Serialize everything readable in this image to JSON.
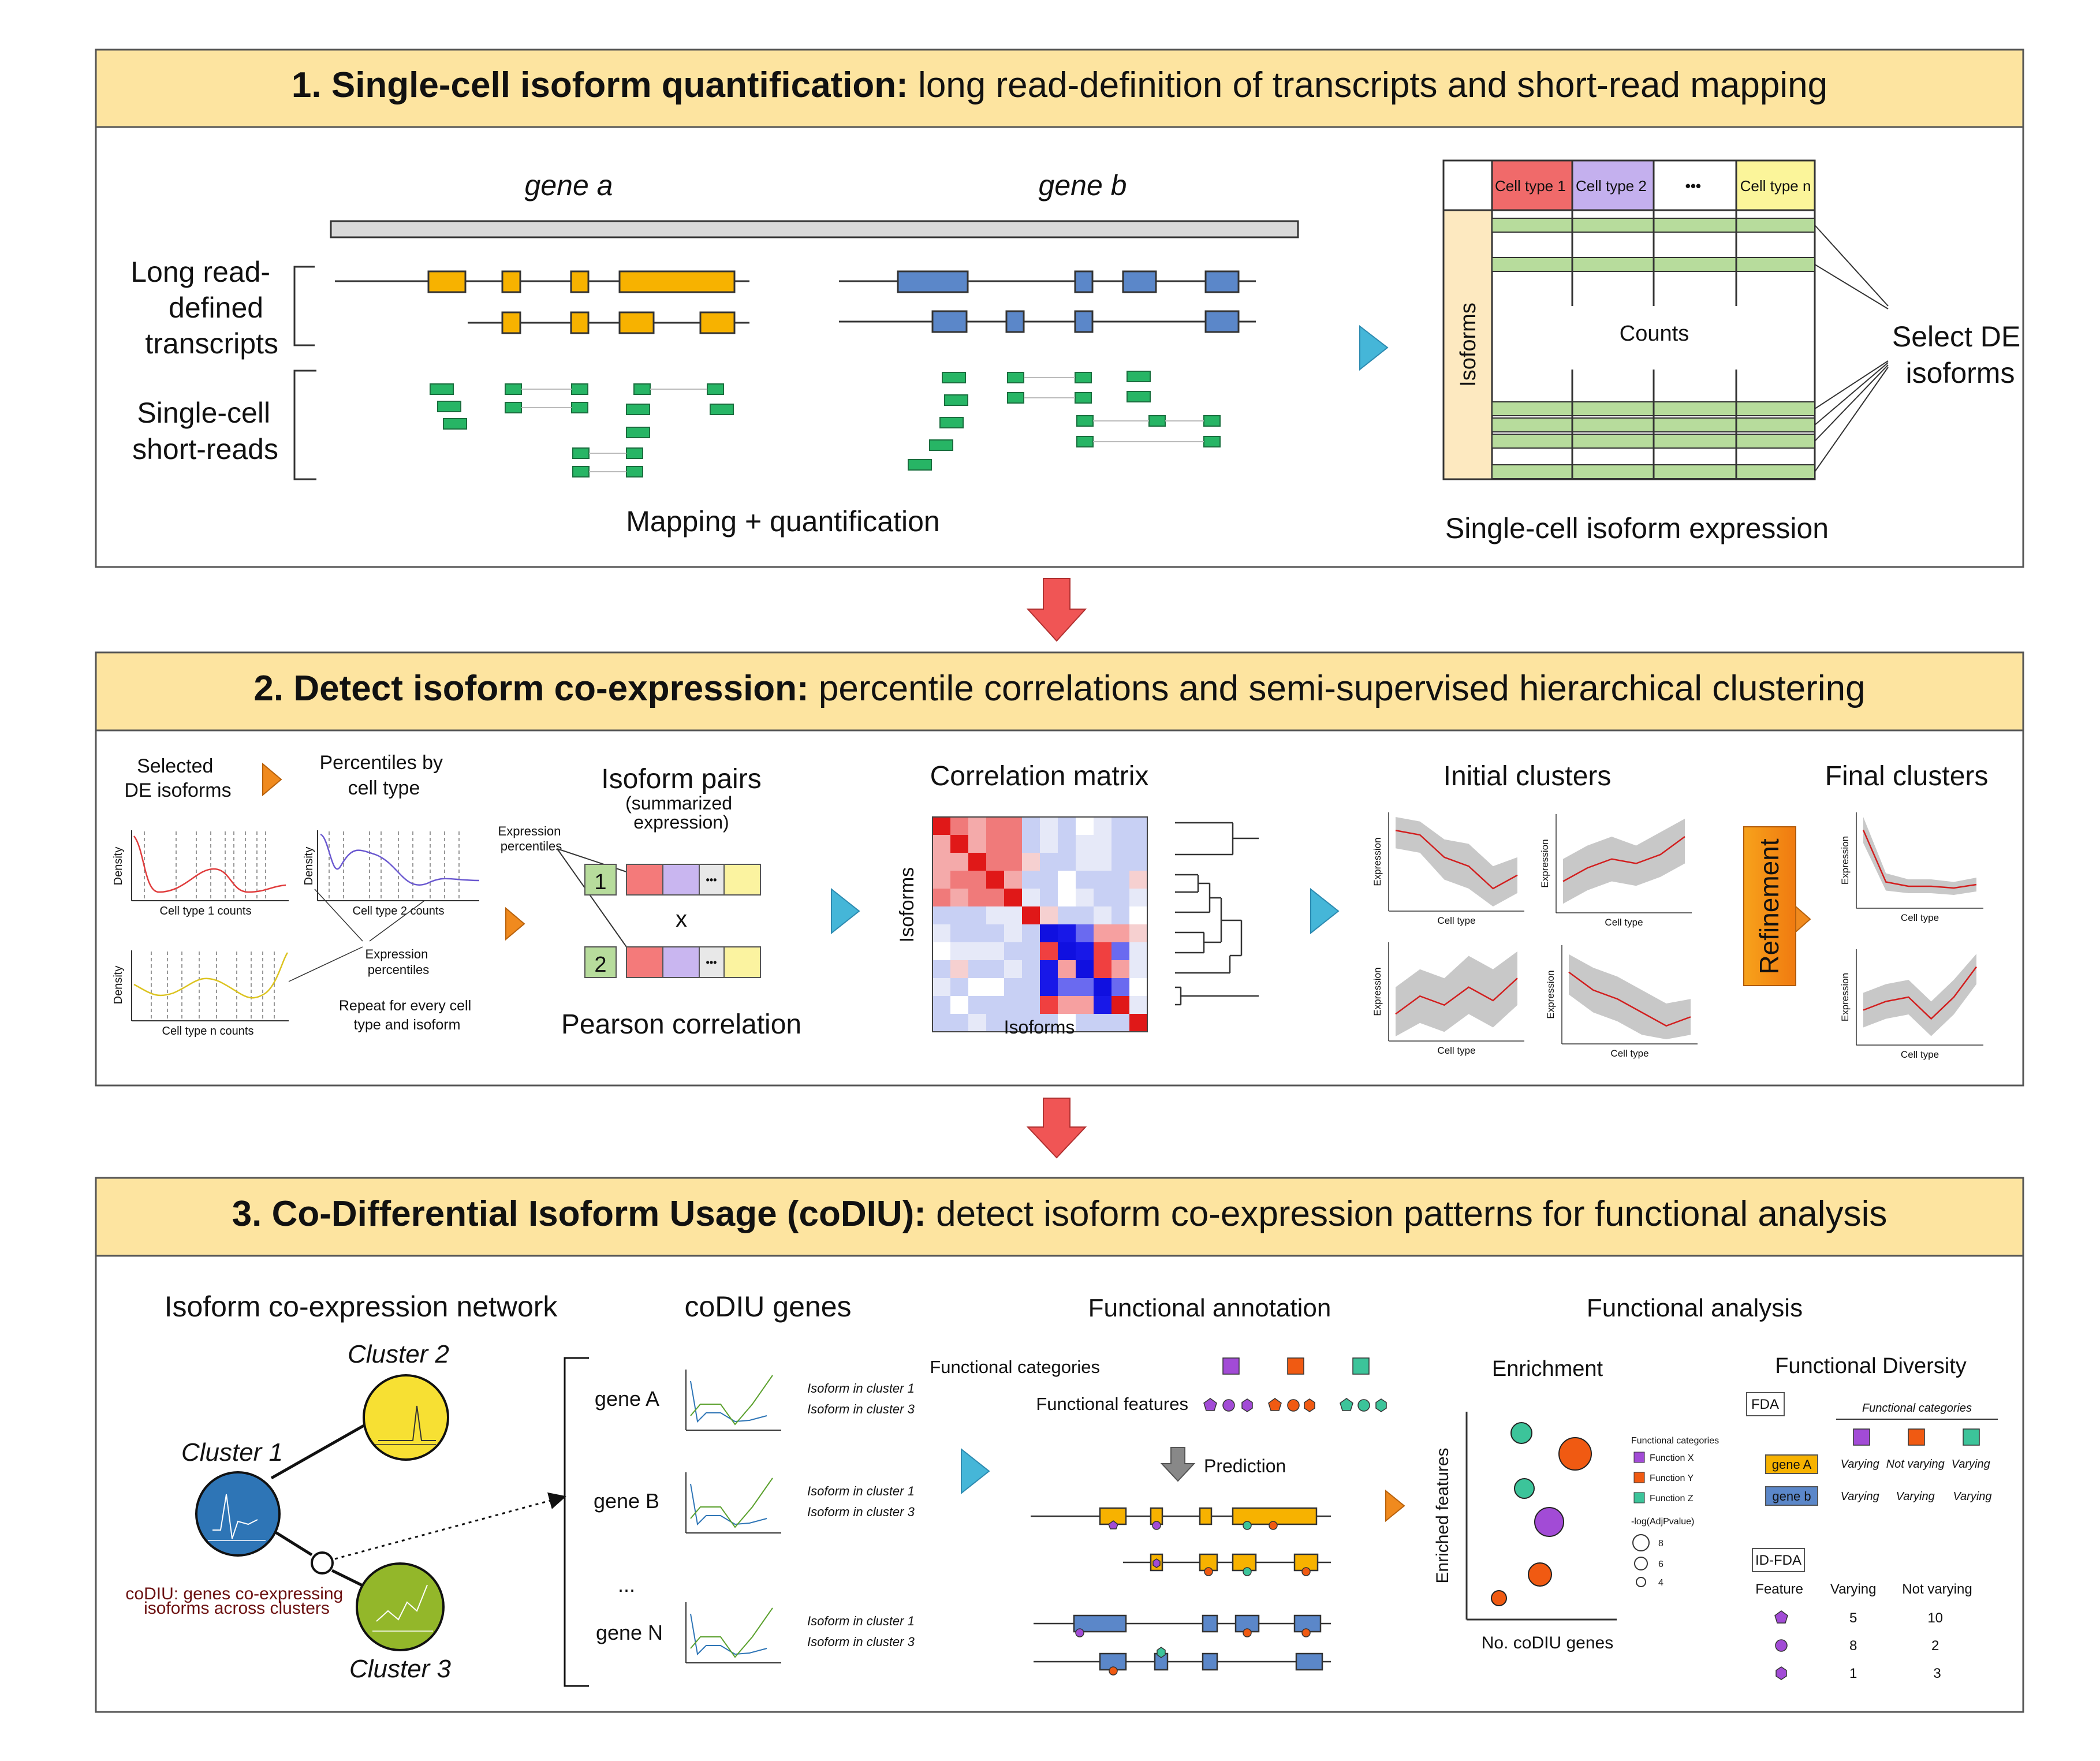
{
  "panel1": {
    "title_bold": "1. Single-cell isoform quantification:",
    "title_rest": " long read-definition of transcripts and short-read mapping",
    "gene_a": "gene a",
    "gene_b": "gene b",
    "long_read_1": "Long read-",
    "long_read_2": "defined",
    "long_read_3": "transcripts",
    "short_read_1": "Single-cell",
    "short_read_2": "short-reads",
    "mapping": "Mapping + quantification",
    "cell_types": [
      "Cell type 1",
      "Cell type 2",
      "•••",
      "Cell type n"
    ],
    "isoforms": "Isoforms",
    "counts": "Counts",
    "select_1": "Select DE",
    "select_2": "isoforms",
    "expression": "Single-cell isoform expression"
  },
  "panel2": {
    "title_bold": "2. Detect isoform co-expression:",
    "title_rest": " percentile correlations and semi-supervised hierarchical clustering",
    "selected_1": "Selected",
    "selected_2": "DE isoforms",
    "percentiles_1": "Percentiles by",
    "percentiles_2": "cell type",
    "density": "Density",
    "ct1": "Cell type 1 counts",
    "ct2": "Cell type 2 counts",
    "ctn": "Cell type n counts",
    "expr_pct_1": "Expression",
    "expr_pct_2": "percentiles",
    "repeat_1": "Repeat for every cell",
    "repeat_2": "type and isoform",
    "pairs": "Isoform pairs",
    "summ_1": "(summarized",
    "summ_2": "expression)",
    "pair_1": "1",
    "pair_2": "2",
    "dots": "•••",
    "x": "x",
    "pearson": "Pearson correlation",
    "corr": "Correlation matrix",
    "isoforms": "Isoforms",
    "initial": "Initial clusters",
    "refinement": "Refinement",
    "final": "Final clusters",
    "expression": "Expression",
    "cell_type": "Cell type"
  },
  "panel3": {
    "title_bold": "3. Co-Differential Isoform Usage (coDIU):",
    "title_rest": " detect isoform co-expression patterns for functional analysis",
    "network": "Isoform co-expression network",
    "cluster1": "Cluster 1",
    "cluster2": "Cluster 2",
    "cluster3": "Cluster 3",
    "codiu_note_1": "coDIU: genes co-expressing",
    "codiu_note_2": "isoforms across clusters",
    "codiu_genes": "coDIU genes",
    "genes": [
      "gene A",
      "gene B",
      "...",
      "gene N"
    ],
    "legend1": "Isoform in cluster 1",
    "legend3": "Isoform in cluster 3",
    "func_annot": "Functional annotation",
    "func_cat": "Functional  categories",
    "func_feat": "Functional features",
    "prediction": "Prediction",
    "func_analysis": "Functional analysis",
    "enrichment": "Enrichment",
    "enriched_features": "Enriched features",
    "n_codiu": "No. coDIU genes",
    "legend_title": "Functional categories",
    "func_x": "Function X",
    "func_y": "Function Y",
    "func_z": "Function Z",
    "padj": "-log(AdjPvalue)",
    "size_labels": [
      "8",
      "6",
      "4"
    ],
    "diversity": "Functional Diversity",
    "fda": "FDA",
    "fda_header": "Functional categories",
    "fda_gene_a": "gene A",
    "fda_gene_b": "gene b",
    "fda_rows": [
      [
        "Varying",
        "Not varying",
        "Varying"
      ],
      [
        "Varying",
        "Varying",
        "Varying"
      ]
    ],
    "idfda": "ID-FDA",
    "idfda_cols": [
      "Feature",
      "Varying",
      "Not varying"
    ],
    "idfda_rows": [
      [
        "5",
        "10"
      ],
      [
        "8",
        "2"
      ],
      [
        "1",
        "3"
      ]
    ]
  },
  "colors": {
    "header_bg": "#fde4a0",
    "orange_exon": "#f7b200",
    "blue_exon": "#5b87c9",
    "green_read": "#27b565",
    "arrow_red": "#f05555",
    "triangle_blue": "#45b6d8",
    "triangle_orange": "#f08a1e",
    "cluster1": "#2e75b6",
    "cluster2": "#f7e033",
    "cluster3": "#93b72a",
    "func_purple": "#a24bd6",
    "func_orange": "#f05a12",
    "func_teal": "#3cc49a"
  }
}
